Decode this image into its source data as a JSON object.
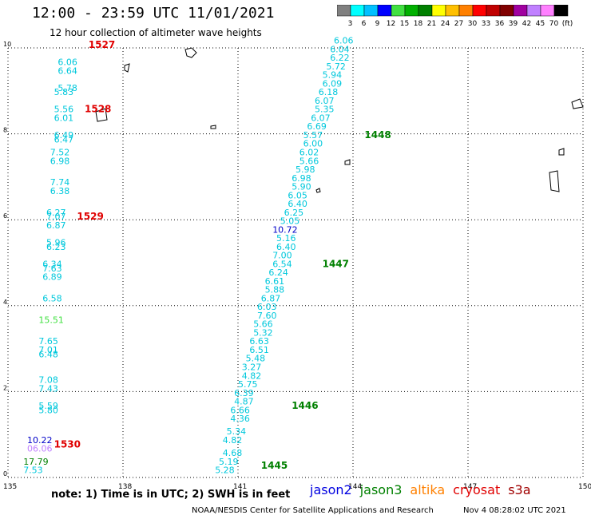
{
  "header": {
    "title": "12:00 - 23:59 UTC 11/01/2021",
    "subtitle": "12 hour collection of altimeter wave heights"
  },
  "legend": {
    "colors": [
      "#808080",
      "#00ffff",
      "#00c0ff",
      "#0000ff",
      "#40e040",
      "#00b000",
      "#008000",
      "#ffff00",
      "#ffc000",
      "#ff8000",
      "#ff0000",
      "#c00000",
      "#800000",
      "#a000a0",
      "#c080ff",
      "#ff80ff",
      "#000000"
    ],
    "labels": [
      "3",
      "6",
      "9",
      "12",
      "15",
      "18",
      "21",
      "24",
      "27",
      "30",
      "33",
      "36",
      "39",
      "42",
      "45",
      "70",
      "(ft)"
    ]
  },
  "axes": {
    "x_ticks": [
      "135",
      "138",
      "141",
      "144",
      "147",
      "150"
    ],
    "y_ticks": [
      "0",
      "2",
      "4",
      "6",
      "8",
      "10"
    ],
    "x_range": [
      135,
      150
    ],
    "y_range": [
      0,
      10
    ]
  },
  "swh_points": [
    {
      "lon": 140.4,
      "lat": 0.1,
      "val": "5.28",
      "color": "#00c8dc"
    },
    {
      "lon": 140.5,
      "lat": 0.3,
      "val": "5.19",
      "color": "#00c8dc"
    },
    {
      "lon": 140.6,
      "lat": 0.5,
      "val": "4.68",
      "color": "#00c8dc"
    },
    {
      "lon": 140.6,
      "lat": 0.8,
      "val": "4.82",
      "color": "#00c8dc"
    },
    {
      "lon": 140.7,
      "lat": 1.0,
      "val": "5.34",
      "color": "#00c8dc"
    },
    {
      "lon": 140.8,
      "lat": 1.3,
      "val": "4.36",
      "color": "#00c8dc"
    },
    {
      "lon": 140.8,
      "lat": 1.5,
      "val": "6.66",
      "color": "#00c8dc"
    },
    {
      "lon": 140.9,
      "lat": 1.7,
      "val": "4.87",
      "color": "#00c8dc"
    },
    {
      "lon": 140.9,
      "lat": 1.9,
      "val": "6.39",
      "color": "#00c8dc"
    },
    {
      "lon": 141.0,
      "lat": 2.1,
      "val": "5.75",
      "color": "#00c8dc"
    },
    {
      "lon": 141.1,
      "lat": 2.3,
      "val": "4.82",
      "color": "#00c8dc"
    },
    {
      "lon": 141.1,
      "lat": 2.5,
      "val": "3.27",
      "color": "#00c8dc"
    },
    {
      "lon": 141.2,
      "lat": 2.7,
      "val": "5.48",
      "color": "#00c8dc"
    },
    {
      "lon": 141.3,
      "lat": 2.9,
      "val": "6.51",
      "color": "#00c8dc"
    },
    {
      "lon": 141.3,
      "lat": 3.1,
      "val": "6.63",
      "color": "#00c8dc"
    },
    {
      "lon": 141.4,
      "lat": 3.3,
      "val": "5.32",
      "color": "#00c8dc"
    },
    {
      "lon": 141.4,
      "lat": 3.5,
      "val": "5.66",
      "color": "#00c8dc"
    },
    {
      "lon": 141.5,
      "lat": 3.7,
      "val": "7.60",
      "color": "#00c8dc"
    },
    {
      "lon": 141.5,
      "lat": 3.9,
      "val": "6.03",
      "color": "#00c8dc"
    },
    {
      "lon": 141.6,
      "lat": 4.1,
      "val": "6.87",
      "color": "#00c8dc"
    },
    {
      "lon": 141.7,
      "lat": 4.3,
      "val": "5.88",
      "color": "#00c8dc"
    },
    {
      "lon": 141.7,
      "lat": 4.5,
      "val": "6.61",
      "color": "#00c8dc"
    },
    {
      "lon": 141.8,
      "lat": 4.7,
      "val": "6.24",
      "color": "#00c8dc"
    },
    {
      "lon": 141.9,
      "lat": 4.9,
      "val": "6.54",
      "color": "#00c8dc"
    },
    {
      "lon": 141.9,
      "lat": 5.1,
      "val": "7.00",
      "color": "#00c8dc"
    },
    {
      "lon": 142.0,
      "lat": 5.3,
      "val": "6.40",
      "color": "#00c8dc"
    },
    {
      "lon": 142.0,
      "lat": 5.5,
      "val": "5.16",
      "color": "#00c8dc"
    },
    {
      "lon": 141.9,
      "lat": 5.7,
      "val": "10.72",
      "color": "#0000c8"
    },
    {
      "lon": 142.1,
      "lat": 5.9,
      "val": "5.05",
      "color": "#00c8dc"
    },
    {
      "lon": 142.2,
      "lat": 6.1,
      "val": "6.25",
      "color": "#00c8dc"
    },
    {
      "lon": 142.3,
      "lat": 6.3,
      "val": "6.40",
      "color": "#00c8dc"
    },
    {
      "lon": 142.3,
      "lat": 6.5,
      "val": "6.05",
      "color": "#00c8dc"
    },
    {
      "lon": 142.4,
      "lat": 6.7,
      "val": "5.90",
      "color": "#00c8dc"
    },
    {
      "lon": 142.4,
      "lat": 6.9,
      "val": "6.98",
      "color": "#00c8dc"
    },
    {
      "lon": 142.5,
      "lat": 7.1,
      "val": "5.98",
      "color": "#00c8dc"
    },
    {
      "lon": 142.6,
      "lat": 7.3,
      "val": "5.66",
      "color": "#00c8dc"
    },
    {
      "lon": 142.6,
      "lat": 7.5,
      "val": "6.02",
      "color": "#00c8dc"
    },
    {
      "lon": 142.7,
      "lat": 7.7,
      "val": "6.00",
      "color": "#00c8dc"
    },
    {
      "lon": 142.7,
      "lat": 7.9,
      "val": "5.57",
      "color": "#00c8dc"
    },
    {
      "lon": 142.8,
      "lat": 8.1,
      "val": "6.69",
      "color": "#00c8dc"
    },
    {
      "lon": 142.9,
      "lat": 8.3,
      "val": "6.07",
      "color": "#00c8dc"
    },
    {
      "lon": 143.0,
      "lat": 8.5,
      "val": "5.35",
      "color": "#00c8dc"
    },
    {
      "lon": 143.0,
      "lat": 8.7,
      "val": "6.07",
      "color": "#00c8dc"
    },
    {
      "lon": 143.1,
      "lat": 8.9,
      "val": "6.18",
      "color": "#00c8dc"
    },
    {
      "lon": 143.2,
      "lat": 9.1,
      "val": "6.09",
      "color": "#00c8dc"
    },
    {
      "lon": 143.2,
      "lat": 9.3,
      "val": "5.94",
      "color": "#00c8dc"
    },
    {
      "lon": 143.3,
      "lat": 9.5,
      "val": "5.72",
      "color": "#00c8dc"
    },
    {
      "lon": 143.4,
      "lat": 9.7,
      "val": "6.22",
      "color": "#00c8dc"
    },
    {
      "lon": 143.4,
      "lat": 9.9,
      "val": "6.04",
      "color": "#00c8dc"
    },
    {
      "lon": 143.5,
      "lat": 10.1,
      "val": "6.06",
      "color": "#00c8dc"
    },
    {
      "lon": 135.4,
      "lat": 0.1,
      "val": "7.53",
      "color": "#00c8dc"
    },
    {
      "lon": 135.4,
      "lat": 0.3,
      "val": "17.79",
      "color": "#008000"
    },
    {
      "lon": 135.5,
      "lat": 0.6,
      "val": "06.06",
      "color": "#c080ff"
    },
    {
      "lon": 135.5,
      "lat": 0.8,
      "val": "10.22",
      "color": "#0000c8"
    },
    {
      "lon": 135.8,
      "lat": 1.5,
      "val": "5.80",
      "color": "#00c8dc"
    },
    {
      "lon": 135.8,
      "lat": 1.6,
      "val": "5.59",
      "color": "#00c8dc"
    },
    {
      "lon": 135.8,
      "lat": 2.0,
      "val": "7.43",
      "color": "#00c8dc"
    },
    {
      "lon": 135.8,
      "lat": 2.2,
      "val": "7.08",
      "color": "#00c8dc"
    },
    {
      "lon": 135.8,
      "lat": 2.8,
      "val": "6.48",
      "color": "#00c8dc"
    },
    {
      "lon": 135.8,
      "lat": 2.9,
      "val": "7.01",
      "color": "#00c8dc"
    },
    {
      "lon": 135.8,
      "lat": 3.1,
      "val": "7.65",
      "color": "#00c8dc"
    },
    {
      "lon": 135.8,
      "lat": 3.6,
      "val": "15.51",
      "color": "#40e040"
    },
    {
      "lon": 135.9,
      "lat": 4.1,
      "val": "6.58",
      "color": "#00c8dc"
    },
    {
      "lon": 135.9,
      "lat": 4.6,
      "val": "6.89",
      "color": "#00c8dc"
    },
    {
      "lon": 135.9,
      "lat": 4.8,
      "val": "7.63",
      "color": "#00c8dc"
    },
    {
      "lon": 135.9,
      "lat": 4.9,
      "val": "6.34",
      "color": "#00c8dc"
    },
    {
      "lon": 136.0,
      "lat": 5.3,
      "val": "6.23",
      "color": "#00c8dc"
    },
    {
      "lon": 136.0,
      "lat": 5.4,
      "val": "5.96",
      "color": "#00c8dc"
    },
    {
      "lon": 136.0,
      "lat": 5.8,
      "val": "6.87",
      "color": "#00c8dc"
    },
    {
      "lon": 136.0,
      "lat": 6.0,
      "val": "7.07",
      "color": "#00c8dc"
    },
    {
      "lon": 136.0,
      "lat": 6.1,
      "val": "6.27",
      "color": "#00c8dc"
    },
    {
      "lon": 136.1,
      "lat": 6.6,
      "val": "6.38",
      "color": "#00c8dc"
    },
    {
      "lon": 136.1,
      "lat": 6.8,
      "val": "7.74",
      "color": "#00c8dc"
    },
    {
      "lon": 136.1,
      "lat": 7.3,
      "val": "6.98",
      "color": "#00c8dc"
    },
    {
      "lon": 136.1,
      "lat": 7.5,
      "val": "7.52",
      "color": "#00c8dc"
    },
    {
      "lon": 136.2,
      "lat": 7.8,
      "val": "6.47",
      "color": "#00c8dc"
    },
    {
      "lon": 136.2,
      "lat": 7.9,
      "val": "6.49",
      "color": "#00c8dc"
    },
    {
      "lon": 136.2,
      "lat": 8.3,
      "val": "6.01",
      "color": "#00c8dc"
    },
    {
      "lon": 136.2,
      "lat": 8.5,
      "val": "5.56",
      "color": "#00c8dc"
    },
    {
      "lon": 136.2,
      "lat": 8.9,
      "val": "5.83",
      "color": "#00c8dc"
    },
    {
      "lon": 136.3,
      "lat": 9.0,
      "val": "5.78",
      "color": "#00c8dc"
    },
    {
      "lon": 136.3,
      "lat": 9.4,
      "val": "6.64",
      "color": "#00c8dc"
    },
    {
      "lon": 136.3,
      "lat": 9.6,
      "val": "6.06",
      "color": "#00c8dc"
    }
  ],
  "time_labels": [
    {
      "lon": 141.6,
      "lat": 0.2,
      "val": "1445",
      "color": "#008000"
    },
    {
      "lon": 142.4,
      "lat": 1.6,
      "val": "1446",
      "color": "#008000"
    },
    {
      "lon": 143.2,
      "lat": 4.9,
      "val": "1447",
      "color": "#008000"
    },
    {
      "lon": 144.3,
      "lat": 7.9,
      "val": "1448",
      "color": "#008000"
    },
    {
      "lon": 136.2,
      "lat": 0.7,
      "val": "1530",
      "color": "#e00000"
    },
    {
      "lon": 136.8,
      "lat": 6.0,
      "val": "1529",
      "color": "#e00000"
    },
    {
      "lon": 137.0,
      "lat": 8.5,
      "val": "1528",
      "color": "#e00000"
    },
    {
      "lon": 137.1,
      "lat": 10.0,
      "val": "1527",
      "color": "#e00000"
    }
  ],
  "footer": {
    "note": "note:  1) Time is in UTC;  2) SWH is in feet",
    "satellites": [
      {
        "name": "jason2",
        "color": "#0000e0"
      },
      {
        "name": "jason3",
        "color": "#008000"
      },
      {
        "name": "altika",
        "color": "#ff8000"
      },
      {
        "name": "cryosat",
        "color": "#e00000"
      },
      {
        "name": "s3a",
        "color": "#a00000"
      }
    ],
    "credit": "NOAA/NESDIS Center for Satellite Applications and Research",
    "timestamp": "Nov  4 08:28:02 UTC 2021"
  }
}
